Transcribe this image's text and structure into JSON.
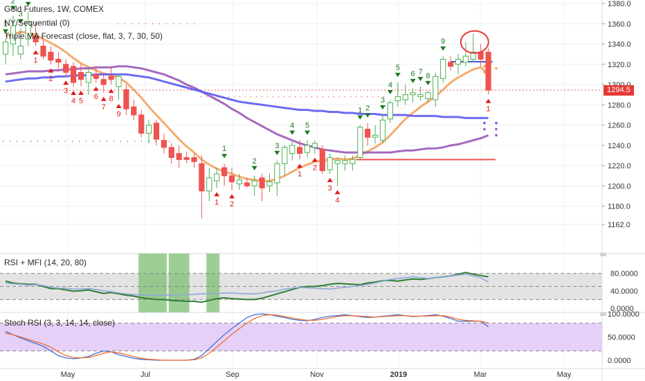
{
  "legend": {
    "main": "Gold Futures, 1W, COMEX",
    "td_sequential": "NY/Sequential (0)",
    "triple_ma": "Triple MA Forecast (close, flat, 3, 7, 30, 50)",
    "rsi_mfi": "RSI + MFI (14, 20, 80)",
    "stoch_rsi": "Stoch RSI (3, 3, 14, 14, close)"
  },
  "price_badge": "1294.5",
  "colors": {
    "up": "#4caf50",
    "down": "#ef5350",
    "ma_fast": "#f5a25d",
    "ma_mid": "#9b59b6",
    "ma_slow": "#5b5bef",
    "badge": "#e53935",
    "rsi": "#2e7d32",
    "mfi": "#8fa8d8",
    "stoch_k": "#3f6fd6",
    "stoch_d": "#f06a30",
    "rsi_band": "#dcdcdc",
    "stoch_band": "#e6d0f7",
    "highlight": "#7cbf72"
  },
  "chart_data": [
    {
      "type": "candlestick",
      "title": "Gold Futures, 1W, COMEX",
      "ylim": [
        1160,
        1380
      ],
      "yticks": [
        "1380.0",
        "1360.0",
        "1340.0",
        "1320.0",
        "1300.0",
        "1280.0",
        "1260.0",
        "1240.0",
        "1220.0",
        "1200.0",
        "1180.0",
        "1162.0"
      ],
      "xticks": [
        "May",
        "Jul",
        "Sep",
        "Nov",
        "2019",
        "Mar",
        "May"
      ],
      "last_price": 1294.5,
      "candles": [
        {
          "o": 1330,
          "h": 1345,
          "l": 1320,
          "c": 1342
        },
        {
          "o": 1340,
          "h": 1368,
          "l": 1328,
          "c": 1358
        },
        {
          "o": 1330,
          "h": 1355,
          "l": 1325,
          "c": 1338
        },
        {
          "o": 1345,
          "h": 1372,
          "l": 1338,
          "c": 1362
        },
        {
          "o": 1348,
          "h": 1362,
          "l": 1338,
          "c": 1342
        },
        {
          "o": 1338,
          "h": 1345,
          "l": 1325,
          "c": 1328
        },
        {
          "o": 1332,
          "h": 1338,
          "l": 1320,
          "c": 1324
        },
        {
          "o": 1325,
          "h": 1332,
          "l": 1315,
          "c": 1322
        },
        {
          "o": 1320,
          "h": 1325,
          "l": 1308,
          "c": 1312
        },
        {
          "o": 1318,
          "h": 1322,
          "l": 1298,
          "c": 1302
        },
        {
          "o": 1312,
          "h": 1320,
          "l": 1298,
          "c": 1305
        },
        {
          "o": 1302,
          "h": 1318,
          "l": 1290,
          "c": 1312
        },
        {
          "o": 1310,
          "h": 1318,
          "l": 1302,
          "c": 1306
        },
        {
          "o": 1305,
          "h": 1310,
          "l": 1292,
          "c": 1300
        },
        {
          "o": 1308,
          "h": 1318,
          "l": 1300,
          "c": 1305
        },
        {
          "o": 1298,
          "h": 1310,
          "l": 1285,
          "c": 1308
        },
        {
          "o": 1295,
          "h": 1300,
          "l": 1270,
          "c": 1276
        },
        {
          "o": 1278,
          "h": 1285,
          "l": 1265,
          "c": 1270
        },
        {
          "o": 1270,
          "h": 1275,
          "l": 1248,
          "c": 1252
        },
        {
          "o": 1252,
          "h": 1265,
          "l": 1242,
          "c": 1260
        },
        {
          "o": 1262,
          "h": 1265,
          "l": 1240,
          "c": 1246
        },
        {
          "o": 1245,
          "h": 1252,
          "l": 1232,
          "c": 1238
        },
        {
          "o": 1238,
          "h": 1242,
          "l": 1222,
          "c": 1228
        },
        {
          "o": 1232,
          "h": 1240,
          "l": 1218,
          "c": 1226
        },
        {
          "o": 1228,
          "h": 1234,
          "l": 1222,
          "c": 1226
        },
        {
          "o": 1228,
          "h": 1232,
          "l": 1218,
          "c": 1224
        },
        {
          "o": 1222,
          "h": 1230,
          "l": 1168,
          "c": 1195
        },
        {
          "o": 1195,
          "h": 1218,
          "l": 1185,
          "c": 1208
        },
        {
          "o": 1205,
          "h": 1218,
          "l": 1198,
          "c": 1212
        },
        {
          "o": 1218,
          "h": 1222,
          "l": 1200,
          "c": 1210
        },
        {
          "o": 1210,
          "h": 1218,
          "l": 1196,
          "c": 1204
        },
        {
          "o": 1202,
          "h": 1212,
          "l": 1196,
          "c": 1206
        },
        {
          "o": 1203,
          "h": 1208,
          "l": 1198,
          "c": 1200
        },
        {
          "o": 1200,
          "h": 1210,
          "l": 1190,
          "c": 1205
        },
        {
          "o": 1208,
          "h": 1212,
          "l": 1185,
          "c": 1198
        },
        {
          "o": 1200,
          "h": 1212,
          "l": 1194,
          "c": 1204
        },
        {
          "o": 1203,
          "h": 1225,
          "l": 1190,
          "c": 1222
        },
        {
          "o": 1222,
          "h": 1240,
          "l": 1210,
          "c": 1238
        },
        {
          "o": 1232,
          "h": 1245,
          "l": 1225,
          "c": 1240
        },
        {
          "o": 1238,
          "h": 1245,
          "l": 1226,
          "c": 1232
        },
        {
          "o": 1233,
          "h": 1245,
          "l": 1228,
          "c": 1240
        },
        {
          "o": 1238,
          "h": 1245,
          "l": 1232,
          "c": 1242
        },
        {
          "o": 1236,
          "h": 1240,
          "l": 1212,
          "c": 1215
        },
        {
          "o": 1216,
          "h": 1232,
          "l": 1212,
          "c": 1228
        },
        {
          "o": 1222,
          "h": 1228,
          "l": 1200,
          "c": 1225
        },
        {
          "o": 1222,
          "h": 1230,
          "l": 1215,
          "c": 1225
        },
        {
          "o": 1222,
          "h": 1230,
          "l": 1215,
          "c": 1226
        },
        {
          "o": 1228,
          "h": 1260,
          "l": 1225,
          "c": 1258
        },
        {
          "o": 1256,
          "h": 1262,
          "l": 1240,
          "c": 1248
        },
        {
          "o": 1248,
          "h": 1260,
          "l": 1242,
          "c": 1250
        },
        {
          "o": 1245,
          "h": 1270,
          "l": 1242,
          "c": 1265
        },
        {
          "o": 1266,
          "h": 1285,
          "l": 1262,
          "c": 1282
        },
        {
          "o": 1284,
          "h": 1302,
          "l": 1278,
          "c": 1288
        },
        {
          "o": 1285,
          "h": 1300,
          "l": 1280,
          "c": 1290
        },
        {
          "o": 1290,
          "h": 1296,
          "l": 1282,
          "c": 1292
        },
        {
          "o": 1288,
          "h": 1298,
          "l": 1284,
          "c": 1290
        },
        {
          "o": 1286,
          "h": 1294,
          "l": 1282,
          "c": 1292
        },
        {
          "o": 1285,
          "h": 1312,
          "l": 1278,
          "c": 1308
        },
        {
          "o": 1306,
          "h": 1328,
          "l": 1302,
          "c": 1325
        },
        {
          "o": 1322,
          "h": 1328,
          "l": 1314,
          "c": 1318
        },
        {
          "o": 1320,
          "h": 1330,
          "l": 1310,
          "c": 1325
        },
        {
          "o": 1322,
          "h": 1342,
          "l": 1318,
          "c": 1328
        },
        {
          "o": 1325,
          "h": 1350,
          "l": 1322,
          "c": 1332
        },
        {
          "o": 1332,
          "h": 1340,
          "l": 1318,
          "c": 1325
        },
        {
          "o": 1332,
          "h": 1336,
          "l": 1290,
          "c": 1294.5
        }
      ],
      "series": [
        {
          "name": "MA 7",
          "values": [
            1348,
            1350,
            1352,
            1351,
            1349,
            1345,
            1341,
            1337,
            1332,
            1326,
            1321,
            1317,
            1314,
            1311,
            1309,
            1307,
            1302,
            1295,
            1287,
            1278,
            1270,
            1262,
            1254,
            1246,
            1239,
            1233,
            1226,
            1221,
            1217,
            1214,
            1212,
            1209,
            1207,
            1206,
            1205,
            1205,
            1207,
            1210,
            1214,
            1218,
            1221,
            1224,
            1225,
            1226,
            1227,
            1226,
            1227,
            1230,
            1234,
            1238,
            1243,
            1250,
            1258,
            1266,
            1272,
            1278,
            1283,
            1288,
            1295,
            1302,
            1307,
            1311,
            1315,
            1317,
            1310
          ]
        },
        {
          "name": "MA 30",
          "values": [
            1310,
            1311,
            1312,
            1313,
            1313,
            1313,
            1314,
            1314,
            1315,
            1315,
            1316,
            1316,
            1317,
            1317,
            1317,
            1318,
            1318,
            1317,
            1316,
            1314,
            1312,
            1310,
            1307,
            1304,
            1300,
            1297,
            1293,
            1289,
            1285,
            1281,
            1276,
            1272,
            1267,
            1263,
            1259,
            1255,
            1251,
            1248,
            1245,
            1242,
            1240,
            1238,
            1236,
            1235,
            1234,
            1233,
            1233,
            1233,
            1233,
            1233,
            1233,
            1233,
            1234,
            1235,
            1235,
            1236,
            1237,
            1237,
            1238,
            1240,
            1241,
            1243,
            1245,
            1247,
            1250
          ]
        },
        {
          "name": "MA 50",
          "values": [
            1303,
            1304,
            1305,
            1306,
            1306,
            1307,
            1307,
            1308,
            1308,
            1309,
            1309,
            1309,
            1310,
            1310,
            1310,
            1310,
            1310,
            1309,
            1308,
            1307,
            1305,
            1303,
            1301,
            1299,
            1297,
            1295,
            1293,
            1291,
            1289,
            1287,
            1285,
            1283,
            1282,
            1281,
            1280,
            1279,
            1278,
            1277,
            1276,
            1275,
            1275,
            1274,
            1274,
            1273,
            1273,
            1272,
            1272,
            1271,
            1271,
            1271,
            1270,
            1270,
            1270,
            1270,
            1269,
            1269,
            1269,
            1269,
            1268,
            1268,
            1268,
            1267,
            1267,
            1267,
            1267
          ]
        }
      ],
      "forecast_points": [
        1318,
        1316,
        1312,
        1262,
        1262,
        1256,
        1256,
        1250
      ],
      "levels": [
        1226,
        1294.5,
        1288,
        1244
      ],
      "td_up_counts": [
        {
          "i": 0,
          "label": "1"
        },
        {
          "i": 1,
          "label": "2"
        },
        {
          "i": 2,
          "label": "3"
        },
        {
          "i": 3,
          "label": "4"
        },
        {
          "i": 29,
          "label": "1"
        },
        {
          "i": 33,
          "label": "2"
        },
        {
          "i": 36,
          "label": "3"
        },
        {
          "i": 38,
          "label": "4"
        },
        {
          "i": 40,
          "label": "5"
        },
        {
          "i": 47,
          "label": "1"
        },
        {
          "i": 48,
          "label": "2"
        },
        {
          "i": 50,
          "label": "3"
        },
        {
          "i": 51,
          "label": "4"
        },
        {
          "i": 52,
          "label": "5"
        },
        {
          "i": 54,
          "label": "6"
        },
        {
          "i": 55,
          "label": "7"
        },
        {
          "i": 56,
          "label": "8"
        },
        {
          "i": 58,
          "label": "9"
        }
      ],
      "td_down_counts": [
        {
          "i": 4,
          "label": "1"
        },
        {
          "i": 6,
          "label": "2"
        },
        {
          "i": 8,
          "label": "3"
        },
        {
          "i": 9,
          "label": "4"
        },
        {
          "i": 10,
          "label": "5"
        },
        {
          "i": 12,
          "label": "6"
        },
        {
          "i": 13,
          "label": "7"
        },
        {
          "i": 14,
          "label": "8"
        },
        {
          "i": 15,
          "label": "9"
        },
        {
          "i": 28,
          "label": "1"
        },
        {
          "i": 30,
          "label": "2"
        },
        {
          "i": 39,
          "label": "1"
        },
        {
          "i": 41,
          "label": "2"
        },
        {
          "i": 43,
          "label": "3"
        },
        {
          "i": 44,
          "label": "4"
        },
        {
          "i": 64,
          "label": "1"
        }
      ]
    },
    {
      "type": "line",
      "title": "RSI + MFI (14, 20, 80)",
      "ylim": [
        0,
        100
      ],
      "yticks": [
        "80.0000",
        "40.0000",
        "0.0000"
      ],
      "series": [
        {
          "name": "RSI",
          "values": [
            62,
            58,
            56,
            55,
            55,
            50,
            45,
            45,
            42,
            39,
            40,
            42,
            38,
            34,
            36,
            33,
            30,
            28,
            24,
            22,
            20,
            20,
            18,
            17,
            16,
            16,
            14,
            18,
            22,
            24,
            22,
            21,
            20,
            20,
            23,
            28,
            33,
            38,
            43,
            48,
            50,
            50,
            52,
            55,
            57,
            56,
            55,
            54,
            58,
            60,
            63,
            64,
            62,
            65,
            67,
            66,
            68,
            70,
            72,
            74,
            78,
            82,
            78,
            75,
            72
          ]
        },
        {
          "name": "MFI",
          "values": [
            58,
            56,
            55,
            53,
            54,
            52,
            48,
            46,
            46,
            44,
            44,
            45,
            43,
            40,
            38,
            35,
            33,
            32,
            30,
            30,
            29,
            30,
            30,
            31,
            31,
            32,
            33,
            34,
            34,
            35,
            35,
            34,
            33,
            33,
            35,
            38,
            40,
            44,
            46,
            48,
            47,
            46,
            45,
            44,
            46,
            48,
            50,
            52,
            55,
            58,
            62,
            66,
            68,
            70,
            72,
            70,
            68,
            70,
            72,
            74,
            76,
            78,
            74,
            70,
            60
          ]
        }
      ],
      "highlight_ranges": [
        [
          18,
          21
        ],
        [
          22,
          24
        ],
        [
          27,
          28
        ]
      ]
    },
    {
      "type": "line",
      "title": "Stoch RSI (3, 3, 14, 14, close)",
      "ylim": [
        0,
        100
      ],
      "yticks": [
        "100.0000",
        "50.0000",
        "0.0000"
      ],
      "series": [
        {
          "name": "K",
          "values": [
            62,
            55,
            48,
            42,
            36,
            30,
            20,
            10,
            5,
            3,
            5,
            8,
            15,
            20,
            18,
            12,
            8,
            4,
            2,
            1,
            0,
            0,
            0,
            0,
            0,
            2,
            10,
            25,
            40,
            55,
            68,
            80,
            92,
            98,
            100,
            98,
            95,
            92,
            88,
            86,
            85,
            88,
            92,
            95,
            96,
            98,
            96,
            94,
            92,
            93,
            95,
            96,
            98,
            96,
            94,
            95,
            96,
            98,
            95,
            90,
            84,
            84,
            84,
            84,
            72
          ]
        },
        {
          "name": "D",
          "values": [
            58,
            55,
            50,
            45,
            40,
            35,
            28,
            18,
            10,
            6,
            5,
            6,
            10,
            15,
            18,
            16,
            12,
            8,
            4,
            2,
            1,
            0,
            0,
            0,
            0,
            1,
            5,
            15,
            28,
            42,
            56,
            68,
            80,
            90,
            96,
            98,
            97,
            94,
            91,
            88,
            86,
            86,
            88,
            91,
            94,
            96,
            96,
            95,
            94,
            93,
            94,
            95,
            96,
            96,
            95,
            95,
            95,
            96,
            96,
            93,
            88,
            86,
            85,
            84,
            80
          ]
        }
      ]
    }
  ]
}
